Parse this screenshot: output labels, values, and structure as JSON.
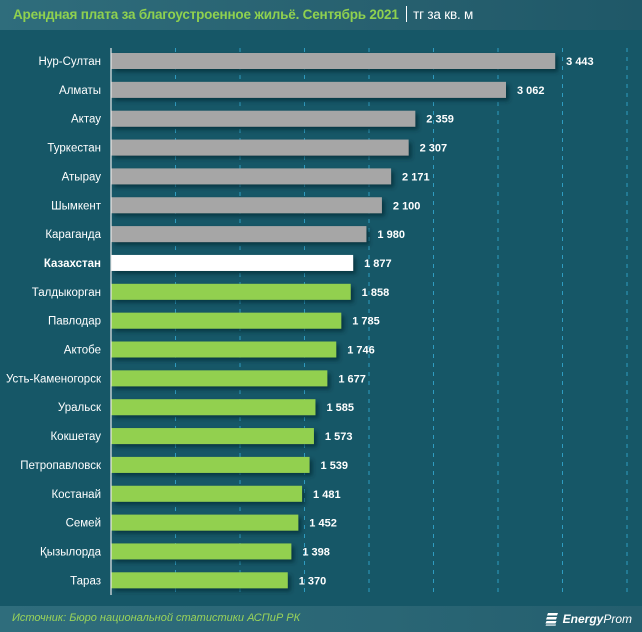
{
  "header": {
    "title": "Арендная плата за благоустроенное жильё. Сентябрь 2021",
    "unit": "тг за кв. м"
  },
  "footer": {
    "source": "Источник: Бюро национальной статистики АСПиР РК",
    "logo_bold": "Energy",
    "logo_regular": "Prom",
    "logo_icon": "energyprom-logo-icon"
  },
  "colors": {
    "background": "#165767",
    "title": "#8fd14f",
    "city_bar": "#a6a6a6",
    "national_bar": "#ffffff",
    "region_bar": "#92d050",
    "gridline": "#2f9cc0"
  },
  "chart_data": {
    "type": "bar",
    "orientation": "horizontal",
    "title": "Арендная плата за благоустроенное жильё. Сентябрь 2021",
    "xlabel": "",
    "ylabel": "",
    "unit": "тг за кв. м",
    "xlim": [
      0,
      4000
    ],
    "grid": "vertical dashed, every 500",
    "legend": "none",
    "categories": [
      "Нур-Султан",
      "Алматы",
      "Актау",
      "Туркестан",
      "Атырау",
      "Шымкент",
      "Караганда",
      "Казахстан",
      "Талдыкорган",
      "Павлодар",
      "Актобе",
      "Усть-Каменогорск",
      "Уральск",
      "Кокшетау",
      "Петропавловск",
      "Костанай",
      "Семей",
      "Қызылорда",
      "Тараз"
    ],
    "values": [
      3443,
      3062,
      2359,
      2307,
      2171,
      2100,
      1980,
      1877,
      1858,
      1785,
      1746,
      1677,
      1585,
      1573,
      1539,
      1481,
      1452,
      1398,
      1370
    ],
    "value_labels": [
      "3 443",
      "3 062",
      "2 359",
      "2 307",
      "2 171",
      "2 100",
      "1 980",
      "1 877",
      "1 858",
      "1 785",
      "1 746",
      "1 677",
      "1 585",
      "1 573",
      "1 539",
      "1 481",
      "1 452",
      "1 398",
      "1 370"
    ],
    "groups": [
      "city",
      "city",
      "city",
      "city",
      "city",
      "city",
      "city",
      "national",
      "region",
      "region",
      "region",
      "region",
      "region",
      "region",
      "region",
      "region",
      "region",
      "region",
      "region"
    ]
  }
}
